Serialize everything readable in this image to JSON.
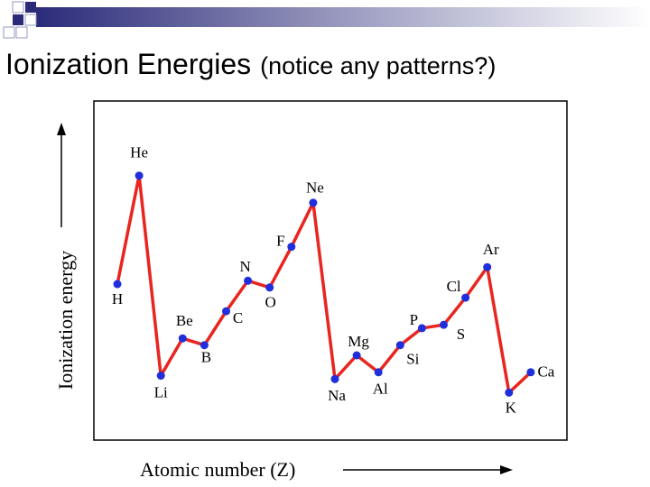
{
  "chart_data": {
    "type": "line",
    "title": "Ionization Energies",
    "subtitle": "(notice any patterns?)",
    "y_label": "Ionization energy",
    "x_label": "Atomic number (Z)",
    "categories": [
      "H",
      "He",
      "Li",
      "Be",
      "B",
      "C",
      "N",
      "O",
      "F",
      "Ne",
      "Na",
      "Mg",
      "Al",
      "Si",
      "P",
      "S",
      "Cl",
      "Ar",
      "K",
      "Ca"
    ],
    "series": [
      {
        "color": "#e8251f",
        "marker_color": "#1f2fdc",
        "values": [
          46,
          78,
          19,
          30,
          28,
          38,
          47,
          45,
          57,
          70,
          18,
          25,
          20,
          28,
          33,
          34,
          42,
          51,
          14,
          20
        ]
      }
    ],
    "ylim": [
      0,
      100
    ]
  }
}
